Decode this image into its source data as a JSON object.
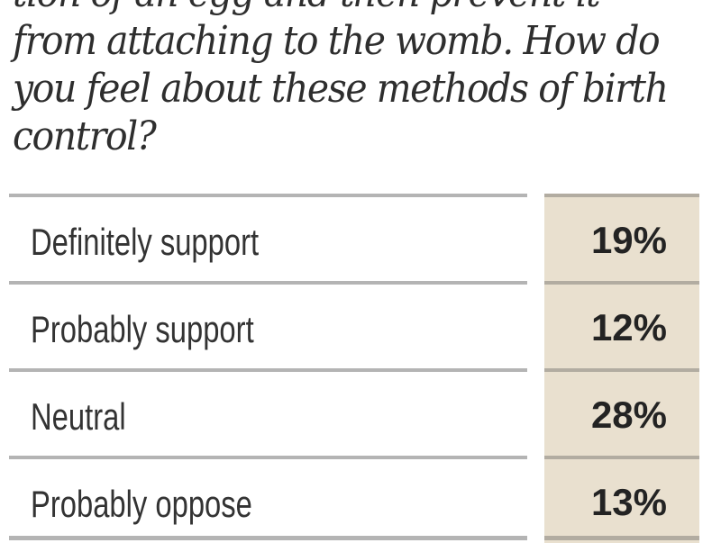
{
  "question": {
    "lines": [
      "tion of an egg and then prevent it",
      "from attaching to the womb. How do",
      "you feel about these methods of birth",
      "control?"
    ]
  },
  "rows": [
    {
      "label": "Definitely support",
      "value": "19%"
    },
    {
      "label": "Probably support",
      "value": "12%"
    },
    {
      "label": "Neutral",
      "value": "28%"
    },
    {
      "label": "Probably oppose",
      "value": "13%"
    }
  ],
  "colors": {
    "value_bg": "#e9e0cf",
    "rule": "#b4b4b4",
    "text": "#333333"
  }
}
